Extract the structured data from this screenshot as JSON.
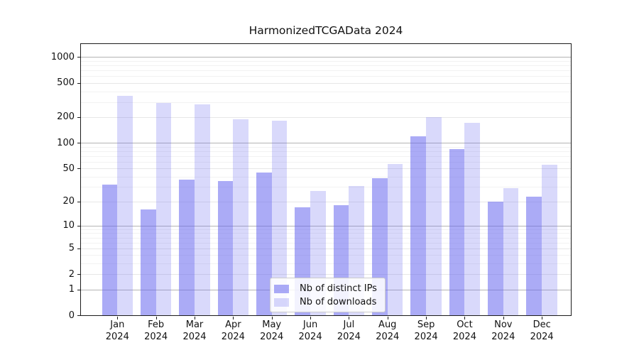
{
  "title": "HarmonizedTCGAData 2024",
  "colors": {
    "accent": "#6666ee",
    "series_distinct_ips": "rgba(102,102,238,0.55)",
    "series_downloads": "rgba(102,102,238,0.25)",
    "grid_major": "#b4b4b4",
    "grid_minor": "#f2f2f2",
    "axis": "#1c1c1c"
  },
  "legend": {
    "items": [
      {
        "label": "Nb of distinct IPs"
      },
      {
        "label": "Nb of downloads"
      }
    ]
  },
  "chart_data": {
    "type": "bar",
    "title": "HarmonizedTCGAData 2024",
    "categories": [
      "Jan 2024",
      "Feb 2024",
      "Mar 2024",
      "Apr 2024",
      "May 2024",
      "Jun 2024",
      "Jul 2024",
      "Aug 2024",
      "Sep 2024",
      "Oct 2024",
      "Nov 2024",
      "Dec 2024"
    ],
    "month_labels": [
      "Jan",
      "Feb",
      "Mar",
      "Apr",
      "May",
      "Jun",
      "Jul",
      "Aug",
      "Sep",
      "Oct",
      "Nov",
      "Dec"
    ],
    "year_label": "2024",
    "series": [
      {
        "name": "Nb of distinct IPs",
        "color": "rgba(102,102,238,0.55)",
        "values": [
          32,
          16,
          37,
          35,
          45,
          17,
          18,
          38,
          120,
          85,
          20,
          23
        ]
      },
      {
        "name": "Nb of downloads",
        "color": "rgba(102,102,238,0.25)",
        "values": [
          355,
          290,
          280,
          190,
          180,
          27,
          31,
          56,
          200,
          170,
          29,
          55
        ]
      }
    ],
    "xlabel": "",
    "ylabel": "",
    "yscale": "log1p",
    "ylim": [
      0,
      1420
    ],
    "y_ticks": [
      0,
      1,
      2,
      5,
      10,
      20,
      50,
      100,
      200,
      500,
      1000
    ],
    "y_major_grid": [
      1,
      10,
      100,
      1000
    ],
    "y_minor_ticks": [
      3,
      4,
      6,
      7,
      8,
      9,
      30,
      40,
      60,
      70,
      80,
      90,
      300,
      400,
      600,
      700,
      800,
      900
    ],
    "grid": true,
    "legend_position": "lower center"
  }
}
